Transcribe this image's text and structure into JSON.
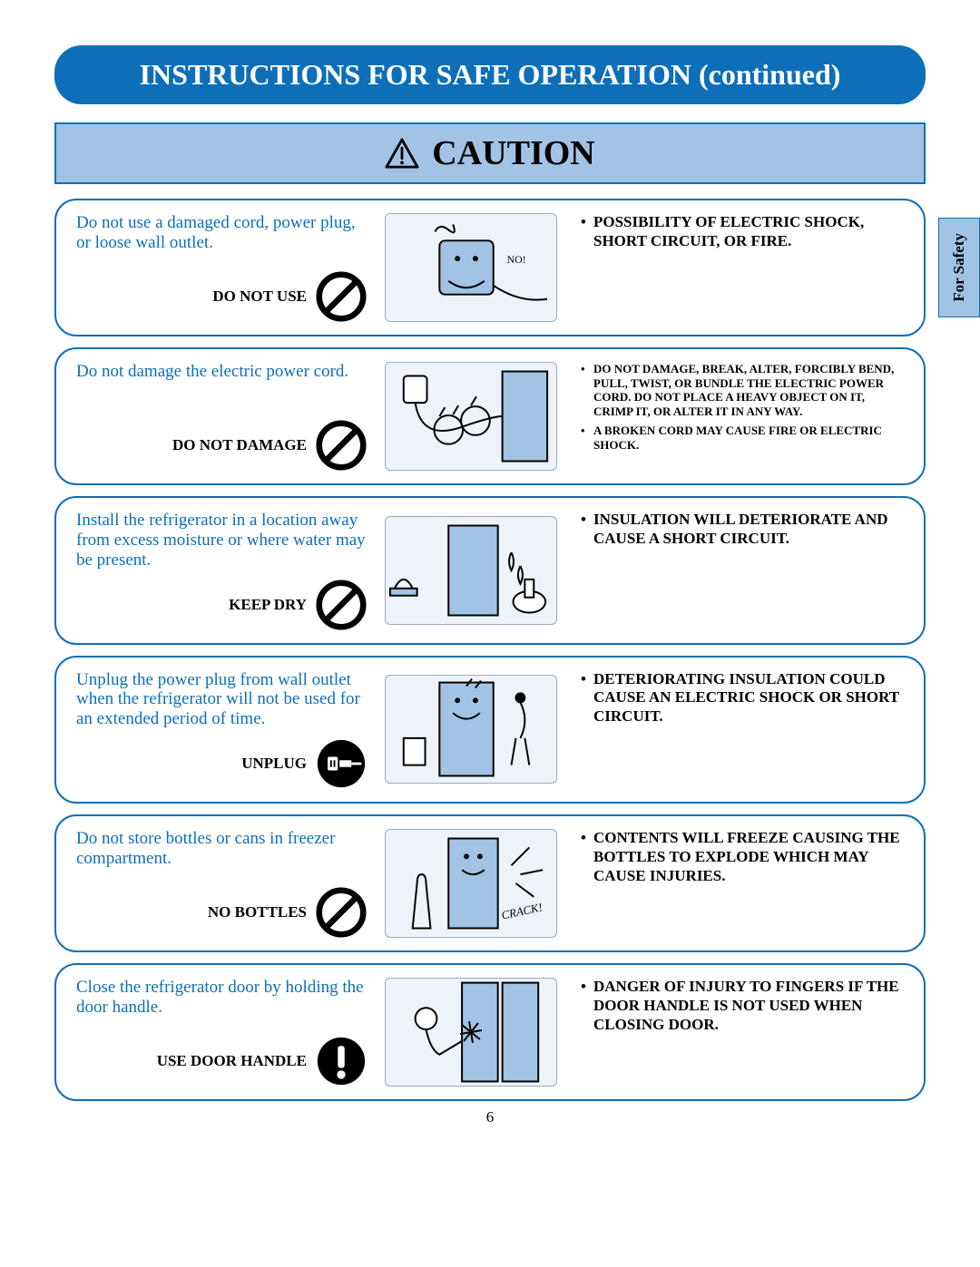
{
  "colors": {
    "brand": "#0d6fb8",
    "panel": "#a2c3e4",
    "text": "#000"
  },
  "title": "INSTRUCTIONS FOR SAFE OPERATION (continued)",
  "caution_label": "CAUTION",
  "tab_label": "For Safety",
  "page_number": "6",
  "icons": {
    "prohibition": "prohibition-icon",
    "mandatory": "mandatory-icon",
    "warning_triangle": "warning-triangle-icon"
  },
  "sections": [
    {
      "instruction": "Do not use a damaged cord, power plug, or loose wall outlet.",
      "icon_type": "prohibition",
      "icon_label": "DO NOT USE",
      "illustration": "damaged-outlet-illustration",
      "illustration_text": "NO!",
      "consequences": [
        "POSSIBILITY OF ELECTRIC SHOCK, SHORT CIRCUIT, OR FIRE."
      ],
      "consequence_size": "normal"
    },
    {
      "instruction": "Do not damage the electric power cord.",
      "icon_type": "prohibition",
      "icon_label": "DO NOT DAMAGE",
      "illustration": "damaged-cord-illustration",
      "illustration_text": "",
      "consequences": [
        "DO NOT DAMAGE, BREAK, ALTER, FORCIBLY BEND, PULL, TWIST, OR BUNDLE THE ELECTRIC POWER CORD. DO NOT PLACE A HEAVY OBJECT ON IT, CRIMP IT, OR ALTER IT IN ANY WAY.",
        "A BROKEN CORD MAY CAUSE FIRE OR ELECTRIC SHOCK."
      ],
      "consequence_size": "small"
    },
    {
      "instruction": "Install the refrigerator in a location away from excess moisture or where water may be present.",
      "icon_type": "prohibition",
      "icon_label": "KEEP DRY",
      "illustration": "moisture-illustration",
      "illustration_text": "",
      "consequences": [
        "INSULATION WILL DETERIORATE AND CAUSE A SHORT CIRCUIT."
      ],
      "consequence_size": "normal"
    },
    {
      "instruction": "Unplug the power plug from wall outlet when the refrigerator will not be used for an extended period of time.",
      "icon_type": "mandatory",
      "icon_label": "UNPLUG",
      "illustration": "unplug-illustration",
      "illustration_text": "",
      "consequences": [
        "DETERIORATING INSULATION COULD CAUSE AN ELECTRIC SHOCK OR SHORT CIRCUIT."
      ],
      "consequence_size": "normal"
    },
    {
      "instruction": "Do not store bottles or cans in freezer compartment.",
      "icon_type": "prohibition",
      "icon_label": "NO BOTTLES",
      "illustration": "bottles-freezer-illustration",
      "illustration_text": "CRACK!",
      "consequences": [
        "CONTENTS WILL FREEZE CAUSING THE BOTTLES TO EXPLODE WHICH MAY CAUSE INJURIES."
      ],
      "consequence_size": "normal"
    },
    {
      "instruction": "Close the refrigerator door by holding the door handle.",
      "icon_type": "mandatory",
      "icon_label": "USE DOOR HANDLE",
      "illustration": "door-handle-illustration",
      "illustration_text": "",
      "consequences": [
        "DANGER OF INJURY TO FINGERS IF THE DOOR HANDLE IS NOT USED WHEN CLOSING DOOR."
      ],
      "consequence_size": "normal"
    }
  ]
}
